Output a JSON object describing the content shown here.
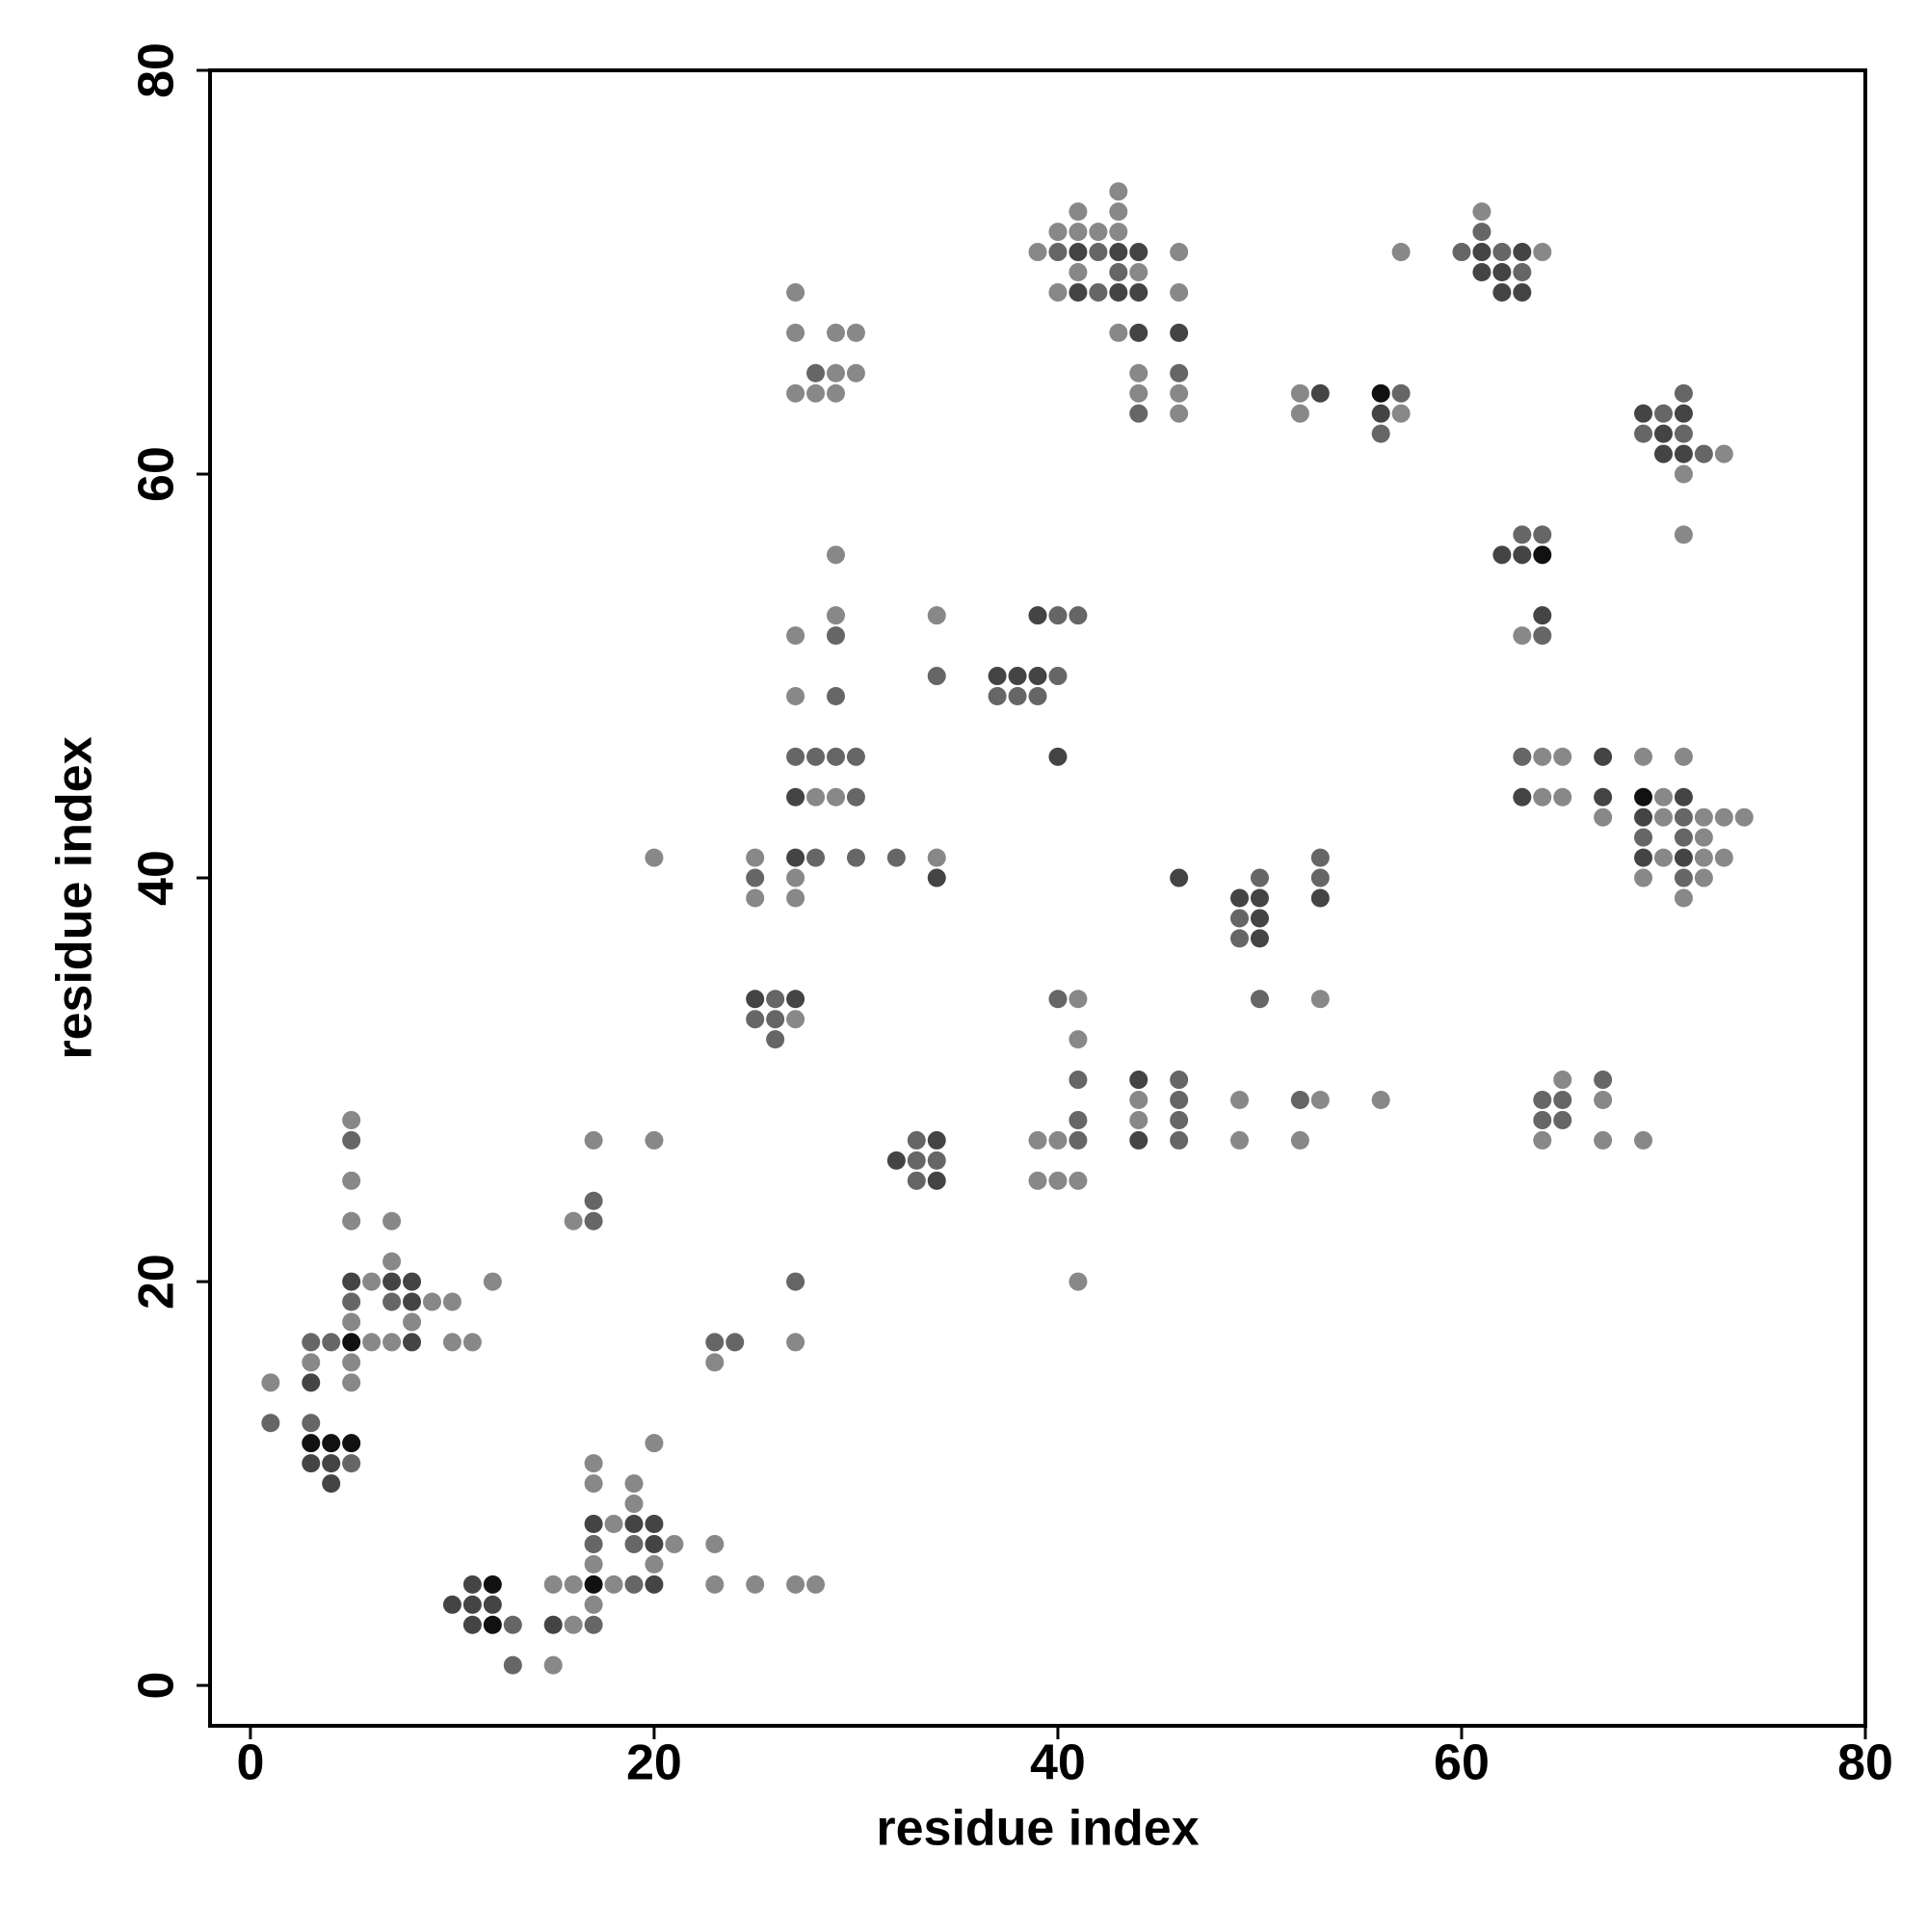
{
  "chart_data": {
    "type": "scatter",
    "xlabel": "residue index",
    "ylabel": "residue index",
    "xlim": [
      -2,
      80
    ],
    "ylim": [
      -2,
      80
    ],
    "xticks": [
      0,
      20,
      40,
      60,
      80
    ],
    "yticks": [
      0,
      20,
      40,
      60,
      80
    ],
    "series": [
      {
        "color": "#888888",
        "x": [
          1,
          3,
          5,
          5,
          5,
          5,
          5,
          5,
          6,
          6,
          7,
          7,
          9,
          10,
          8,
          7,
          10,
          11,
          12,
          15,
          15,
          16,
          16,
          17,
          17,
          17,
          17,
          18,
          18,
          19,
          19,
          20,
          21,
          20,
          23,
          23,
          25,
          27,
          28,
          16,
          17,
          20,
          23,
          27,
          20,
          25,
          25,
          27,
          27,
          34,
          27,
          28,
          29,
          27,
          27,
          29,
          29,
          34,
          27,
          27,
          29,
          30,
          29,
          30,
          27,
          28,
          29,
          43,
          41,
          43,
          40,
          41,
          42,
          43,
          39,
          46,
          41,
          44,
          40,
          46,
          43,
          44,
          44,
          46,
          46,
          52,
          52,
          57,
          57,
          61,
          64,
          73,
          71,
          71,
          63,
          64,
          65,
          64,
          65,
          67,
          69,
          71,
          70,
          70,
          72,
          73,
          74,
          72,
          70,
          72,
          73,
          69,
          72,
          71,
          53,
          41,
          41,
          40,
          39,
          39,
          40,
          41,
          41,
          44,
          44,
          49,
          49,
          53,
          52,
          56,
          65,
          64,
          67,
          67,
          69
        ],
        "y": [
          15,
          16,
          28,
          25,
          23,
          18,
          16,
          15,
          20,
          17,
          23,
          21,
          19,
          19,
          18,
          17,
          17,
          17,
          20,
          1,
          5,
          5,
          3,
          4,
          6,
          10,
          11,
          8,
          5,
          9,
          10,
          6,
          7,
          12,
          7,
          5,
          5,
          5,
          5,
          23,
          27,
          27,
          16,
          17,
          41,
          41,
          39,
          40,
          39,
          41,
          33,
          44,
          44,
          49,
          52,
          53,
          56,
          53,
          69,
          67,
          67,
          67,
          65,
          65,
          64,
          64,
          64,
          74,
          73,
          73,
          72,
          72,
          72,
          72,
          71,
          71,
          70,
          70,
          69,
          69,
          67,
          65,
          64,
          64,
          63,
          64,
          63,
          63,
          71,
          73,
          71,
          61,
          60,
          57,
          52,
          46,
          46,
          44,
          44,
          43,
          46,
          46,
          44,
          43,
          43,
          43,
          43,
          42,
          41,
          41,
          41,
          40,
          40,
          39,
          34,
          34,
          32,
          27,
          27,
          25,
          25,
          25,
          20,
          29,
          28,
          29,
          27,
          29,
          27,
          29,
          30,
          27,
          29,
          27,
          27
        ]
      },
      {
        "color": "#666666",
        "x": [
          1,
          3,
          4,
          3,
          5,
          5,
          5,
          7,
          13,
          13,
          17,
          17,
          19,
          19,
          17,
          17,
          23,
          24,
          27,
          25,
          28,
          30,
          32,
          26,
          25,
          26,
          26,
          27,
          28,
          29,
          30,
          30,
          29,
          29,
          34,
          33,
          33,
          34,
          33,
          40,
          37,
          38,
          39,
          40,
          41,
          28,
          40,
          42,
          43,
          42,
          46,
          44,
          57,
          56,
          60,
          61,
          62,
          63,
          70,
          71,
          69,
          71,
          72,
          63,
          64,
          64,
          63,
          71,
          69,
          71,
          71,
          49,
          49,
          50,
          50,
          53,
          53,
          40,
          41,
          41,
          41,
          46,
          46,
          46,
          46,
          52,
          64,
          65,
          64,
          65,
          67
        ],
        "y": [
          13,
          17,
          17,
          13,
          11,
          27,
          19,
          19,
          3,
          1,
          3,
          7,
          5,
          7,
          23,
          24,
          17,
          17,
          20,
          40,
          41,
          41,
          41,
          34,
          33,
          33,
          32,
          46,
          46,
          46,
          46,
          44,
          49,
          52,
          50,
          27,
          26,
          26,
          25,
          50,
          49,
          49,
          49,
          53,
          53,
          65,
          71,
          71,
          70,
          69,
          65,
          63,
          64,
          62,
          71,
          72,
          71,
          70,
          63,
          64,
          62,
          62,
          61,
          57,
          57,
          52,
          46,
          43,
          42,
          42,
          40,
          38,
          37,
          40,
          34,
          41,
          40,
          34,
          30,
          28,
          27,
          30,
          29,
          28,
          27,
          29,
          29,
          29,
          28,
          28,
          30
        ]
      },
      {
        "color": "#444444",
        "x": [
          3,
          3,
          4,
          4,
          5,
          7,
          8,
          8,
          8,
          10,
          11,
          11,
          12,
          11,
          15,
          17,
          20,
          19,
          20,
          20,
          27,
          34,
          25,
          27,
          27,
          34,
          32,
          34,
          37,
          38,
          39,
          39,
          40,
          41,
          43,
          44,
          41,
          43,
          44,
          44,
          46,
          53,
          56,
          61,
          63,
          61,
          62,
          62,
          63,
          69,
          71,
          70,
          70,
          71,
          62,
          63,
          64,
          63,
          67,
          67,
          71,
          69,
          69,
          71,
          46,
          49,
          50,
          50,
          50,
          53,
          44,
          44
        ],
        "y": [
          15,
          11,
          11,
          10,
          20,
          20,
          20,
          19,
          17,
          4,
          5,
          4,
          4,
          3,
          3,
          8,
          7,
          8,
          8,
          5,
          41,
          40,
          34,
          34,
          44,
          27,
          26,
          25,
          50,
          50,
          50,
          53,
          46,
          71,
          71,
          71,
          69,
          69,
          69,
          67,
          67,
          64,
          63,
          71,
          71,
          70,
          70,
          69,
          69,
          63,
          63,
          62,
          61,
          61,
          56,
          56,
          53,
          44,
          46,
          44,
          44,
          43,
          41,
          41,
          40,
          39,
          39,
          38,
          37,
          39,
          30,
          27
        ]
      },
      {
        "color": "#111111",
        "x": [
          3,
          4,
          5,
          5,
          12,
          12,
          17,
          56,
          64,
          69
        ],
        "y": [
          12,
          12,
          12,
          17,
          5,
          3,
          5,
          64,
          56,
          44
        ]
      }
    ]
  }
}
